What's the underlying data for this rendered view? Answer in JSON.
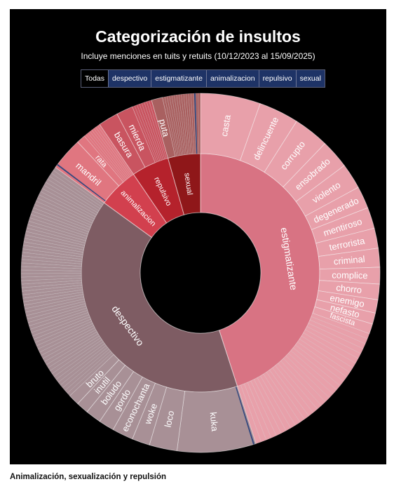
{
  "caption": "Animalización, sexualización y repulsión",
  "filters": [
    "Todas",
    "despectivo",
    "estigmatizante",
    "animalizacion",
    "repulsivo",
    "sexual"
  ],
  "active_filter": "Todas",
  "colors": {
    "estigmatizante": "#d87383",
    "estigmatizante_outer": "#e8a0aa",
    "despectivo": "#7e5c63",
    "despectivo_outer": "#a89096",
    "animalizacion": "#d2404e",
    "animalizacion_outer": "#e07680",
    "repulsivo": "#b5222c",
    "repulsivo_outer": "#c95460",
    "sexual": "#8f1719",
    "sexual_outer": "#a96060",
    "accent_blue": "#34497f"
  },
  "chart_data": {
    "type": "sunburst",
    "title": "Categorización de insultos",
    "subtitle": "Incluye menciones en tuits y retuits (10/12/2023 al 15/09/2025)",
    "categories": [
      {
        "name": "estigmatizante",
        "value": 0.45,
        "children": [
          {
            "name": "casta",
            "value": 0.054
          },
          {
            "name": "delincuente",
            "value": 0.036
          },
          {
            "name": "corrupto",
            "value": 0.032
          },
          {
            "name": "ensobrado",
            "value": 0.026
          },
          {
            "name": "violento",
            "value": 0.023
          },
          {
            "name": "degenerado",
            "value": 0.02
          },
          {
            "name": "mentiroso",
            "value": 0.019
          },
          {
            "name": "terrorista",
            "value": 0.018
          },
          {
            "name": "criminal",
            "value": 0.017
          },
          {
            "name": "complice",
            "value": 0.015
          },
          {
            "name": "chorro",
            "value": 0.014
          },
          {
            "name": "enemigo",
            "value": 0.012
          },
          {
            "name": "nefasto",
            "value": 0.01
          },
          {
            "name": "fascista",
            "value": 0.009
          }
        ],
        "other_value": 0.145,
        "other_segments": 30
      },
      {
        "name": "despectivo",
        "value": 0.4,
        "children": [
          {
            "name": "kuka",
            "value": 0.071
          },
          {
            "name": "loco",
            "value": 0.025
          },
          {
            "name": "woke",
            "value": 0.016
          },
          {
            "name": "econochanta",
            "value": 0.019
          },
          {
            "name": "gordo",
            "value": 0.014
          },
          {
            "name": "boludo",
            "value": 0.014
          },
          {
            "name": "inutil",
            "value": 0.011
          },
          {
            "name": "bruto",
            "value": 0.01
          }
        ],
        "other_value": 0.22,
        "other_segments": 70
      },
      {
        "name": "animalizacion",
        "value": 0.055,
        "children": [
          {
            "name": "mandril",
            "value": 0.03
          },
          {
            "name": "rata",
            "value": 0.008
          }
        ],
        "other_value": 0.017,
        "other_segments": 8
      },
      {
        "name": "repulsivo",
        "value": 0.051,
        "children": [
          {
            "name": "basura",
            "value": 0.018
          },
          {
            "name": "mierda",
            "value": 0.015
          }
        ],
        "other_value": 0.018,
        "other_segments": 8
      },
      {
        "name": "sexual",
        "value": 0.044,
        "children": [
          {
            "name": "puta",
            "value": 0.01
          }
        ],
        "other_value": 0.034,
        "other_segments": 16
      }
    ]
  }
}
